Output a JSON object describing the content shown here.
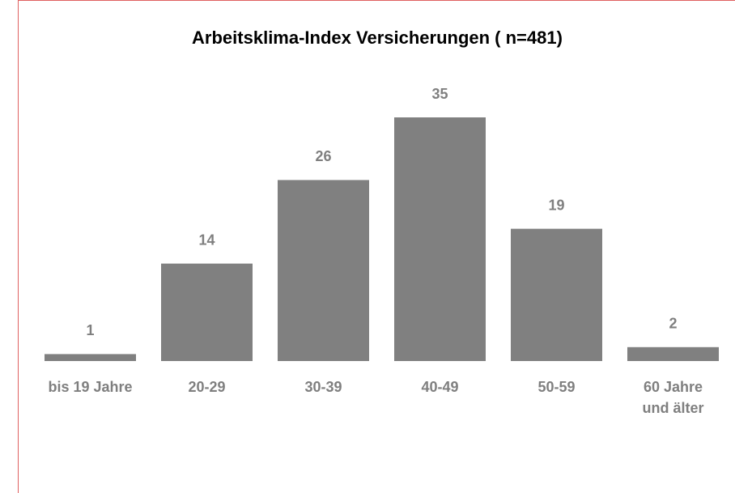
{
  "chart_data": {
    "type": "bar",
    "title": "Arbeitsklima-Index Versicherungen ( n=481)",
    "categories": [
      "bis 19 Jahre",
      "20-29",
      "30-39",
      "40-49",
      "50-59",
      "60 Jahre und älter"
    ],
    "values": [
      1,
      14,
      26,
      35,
      19,
      2
    ],
    "color": "#808080"
  }
}
